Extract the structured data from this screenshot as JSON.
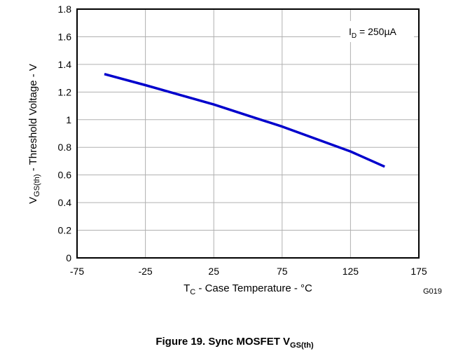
{
  "chart_data": {
    "type": "line",
    "title": "",
    "xlabel": {
      "main": "T",
      "sub": "C",
      "rest": " - Case Temperature - °C"
    },
    "ylabel": {
      "main": "V",
      "sub": "GS(th)",
      "rest": " - Threshold Voltage - V"
    },
    "xlim": [
      -75,
      175
    ],
    "ylim": [
      0,
      1.8
    ],
    "xticks": [
      "-75",
      "-25",
      "25",
      "75",
      "125",
      "175"
    ],
    "yticks": [
      "0",
      "0.2",
      "0.4",
      "0.6",
      "0.8",
      "1",
      "1.2",
      "1.4",
      "1.6",
      "1.8"
    ],
    "grid": true,
    "series": [
      {
        "color": "#0000cc",
        "x": [
          -55,
          -25,
          0,
          25,
          50,
          75,
          100,
          125,
          150
        ],
        "y": [
          1.33,
          1.25,
          1.18,
          1.11,
          1.03,
          0.95,
          0.86,
          0.77,
          0.66
        ]
      }
    ],
    "annotation": {
      "main": "I",
      "sub": "D",
      "rest": " = 250µA"
    },
    "figure_code": "G019"
  },
  "caption": {
    "main": "Figure 19. Sync MOSFET V",
    "sub": "GS(th)"
  }
}
